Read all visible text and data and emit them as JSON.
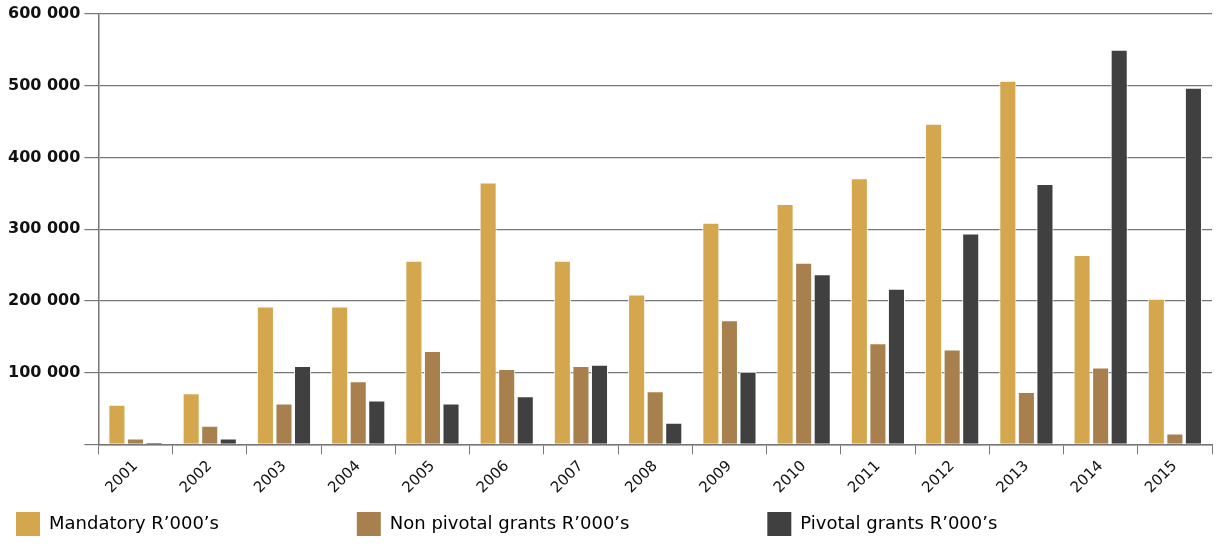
{
  "chart_data": {
    "type": "bar",
    "categories": [
      "2001",
      "2002",
      "2003",
      "2004",
      "2005",
      "2006",
      "2007",
      "2008",
      "2009",
      "2010",
      "2011",
      "2012",
      "2013",
      "2014",
      "2015"
    ],
    "series": [
      {
        "name": "Mandatory R’000’s",
        "color": "#d4a74f",
        "values": [
          55000,
          71000,
          192000,
          192000,
          256000,
          365000,
          256000,
          209000,
          309000,
          335000,
          371000,
          447000,
          507000,
          264000,
          203000
        ]
      },
      {
        "name": "Non pivotal grants R’000’s",
        "color": "#a8804d",
        "values": [
          8000,
          26000,
          57000,
          88000,
          130000,
          105000,
          109000,
          74000,
          173000,
          253000,
          141000,
          132000,
          73000,
          107000,
          15000
        ]
      },
      {
        "name": "Pivotal grants R’000’s",
        "color": "#404041",
        "values": [
          3000,
          8000,
          109000,
          61000,
          57000,
          67000,
          111000,
          30000,
          101000,
          237000,
          217000,
          294000,
          363000,
          550000,
          497000
        ]
      }
    ],
    "ylim": [
      0,
      600000
    ],
    "yticks": [
      {
        "value": 0,
        "label": null
      },
      {
        "value": 100000,
        "label": "100 000"
      },
      {
        "value": 200000,
        "label": "200 000"
      },
      {
        "value": 300000,
        "label": "300 000"
      },
      {
        "value": 400000,
        "label": "400 000"
      },
      {
        "value": 500000,
        "label": "500 000"
      },
      {
        "value": 600000,
        "label": "600 000"
      }
    ],
    "grid": "y",
    "legend": "bottom"
  }
}
